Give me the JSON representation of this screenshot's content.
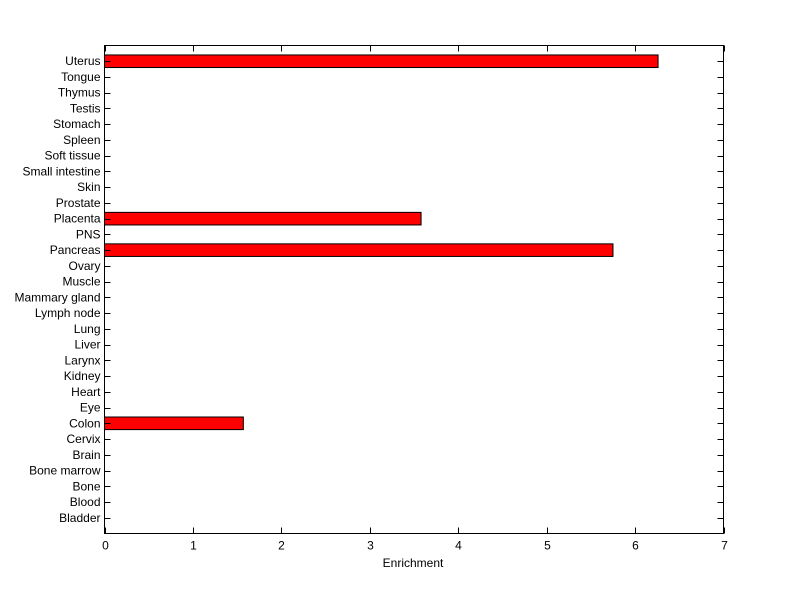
{
  "chart_data": {
    "type": "bar",
    "orientation": "horizontal",
    "title": "",
    "xlabel": "Enrichment",
    "ylabel": "",
    "xlim": [
      0,
      7
    ],
    "xticks": [
      0,
      1,
      2,
      3,
      4,
      5,
      6,
      7
    ],
    "grid": false,
    "bar_color": "#ff0000",
    "edge_color": "#000000",
    "categories": [
      "Uterus",
      "Tongue",
      "Thymus",
      "Testis",
      "Stomach",
      "Spleen",
      "Soft tissue",
      "Small intestine",
      "Skin",
      "Prostate",
      "Placenta",
      "PNS",
      "Pancreas",
      "Ovary",
      "Muscle",
      "Mammary gland",
      "Lymph node",
      "Lung",
      "Liver",
      "Larynx",
      "Kidney",
      "Heart",
      "Eye",
      "Colon",
      "Cervix",
      "Brain",
      "Bone marrow",
      "Bone",
      "Blood",
      "Bladder"
    ],
    "values": [
      6.26,
      0,
      0,
      0,
      0,
      0,
      0,
      0,
      0,
      0,
      3.58,
      0,
      5.75,
      0,
      0,
      0,
      0,
      0,
      0,
      0,
      0,
      0,
      0,
      1.57,
      0,
      0,
      0,
      0,
      0,
      0
    ]
  }
}
